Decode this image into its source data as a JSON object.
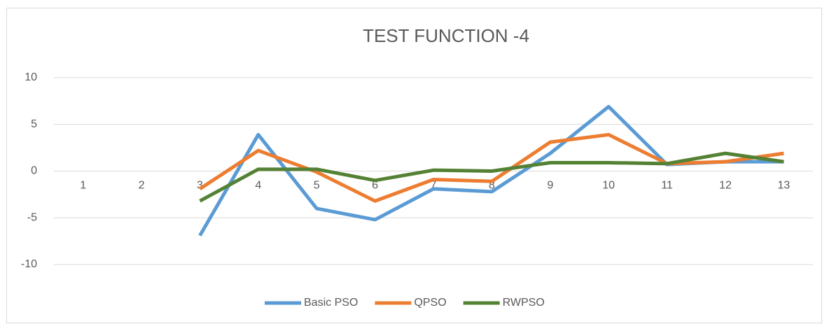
{
  "chart_data": {
    "type": "line",
    "title": "TEST FUNCTION -4",
    "categories": [
      "1",
      "2",
      "3",
      "4",
      "5",
      "6",
      "7",
      "8",
      "9",
      "10",
      "11",
      "12",
      "13"
    ],
    "series": [
      {
        "name": "Basic PSO",
        "color": "#5b9bd5",
        "values": [
          null,
          null,
          -6.9,
          3.9,
          -4.0,
          -5.2,
          -1.9,
          -2.2,
          1.9,
          6.9,
          0.7,
          1.0,
          1.0
        ]
      },
      {
        "name": "QPSO",
        "color": "#ed7d31",
        "values": [
          null,
          null,
          -1.9,
          2.2,
          -0.1,
          -3.2,
          -0.9,
          -1.1,
          3.1,
          3.9,
          0.8,
          1.0,
          1.9
        ]
      },
      {
        "name": "RWPSO",
        "color": "#548235",
        "values": [
          null,
          null,
          -3.2,
          0.2,
          0.2,
          -1.0,
          0.1,
          0.0,
          0.9,
          0.9,
          0.8,
          1.9,
          1.0
        ]
      }
    ],
    "ylim": [
      -10,
      10
    ],
    "yticks": [
      -10,
      -5,
      0,
      5,
      10
    ],
    "grid": true,
    "legend": "bottom"
  }
}
